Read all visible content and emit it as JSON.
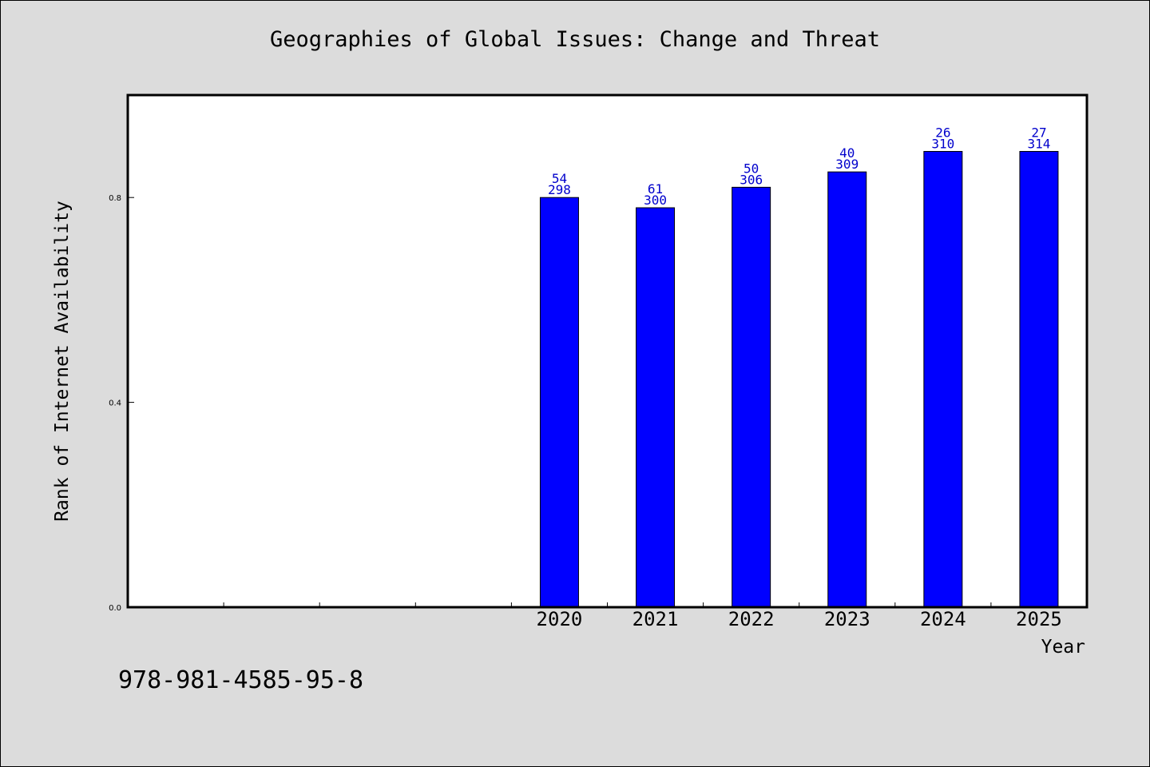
{
  "chart_data": {
    "type": "bar",
    "title": "Geographies of Global Issues: Change and Threat",
    "xlabel": "Year",
    "ylabel": "Rank of Internet Availability",
    "categories": [
      "",
      "",
      "",
      "",
      "2020",
      "2021",
      "2022",
      "2023",
      "2024",
      "2025"
    ],
    "values": [
      null,
      null,
      null,
      null,
      0.8,
      0.78,
      0.82,
      0.85,
      0.89,
      0.89
    ],
    "bar_labels": [
      null,
      null,
      null,
      null,
      [
        "54",
        "298"
      ],
      [
        "61",
        "300"
      ],
      [
        "50",
        "306"
      ],
      [
        "40",
        "309"
      ],
      [
        "26",
        "310"
      ],
      [
        "27",
        "314"
      ]
    ],
    "ylim": [
      0,
      1.0
    ],
    "yticks": [
      "0.0",
      "0.4",
      "0.8"
    ],
    "ytick_values": [
      0.0,
      0.4,
      0.8
    ],
    "grid": false,
    "bar_color": "#0000ff",
    "label_color": "#0000cc"
  },
  "footer": {
    "isbn": "978-981-4585-95-8"
  }
}
